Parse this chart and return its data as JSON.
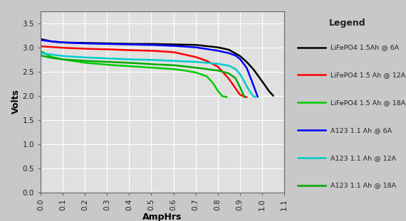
{
  "title": "",
  "xlabel": "AmpHrs",
  "ylabel": "Volts",
  "xlim": [
    0.0,
    1.1
  ],
  "ylim": [
    0.0,
    3.75
  ],
  "xticks": [
    0.0,
    0.1,
    0.2,
    0.3,
    0.4,
    0.5,
    0.6,
    0.7,
    0.8,
    0.9,
    1.0,
    1.1
  ],
  "yticks": [
    0.0,
    0.5,
    1.0,
    1.5,
    2.0,
    2.5,
    3.0,
    3.5
  ],
  "background_color": "#c8c8c8",
  "plot_bg_color": "#e0e0e0",
  "legend_bg_color": "#ffffff",
  "legend_title": "Legend",
  "series": [
    {
      "label": "LiFePO4 1.5Ah @ 6A",
      "color": "#000000",
      "linewidth": 1.8,
      "x": [
        0.0,
        0.05,
        0.1,
        0.2,
        0.3,
        0.4,
        0.5,
        0.6,
        0.7,
        0.8,
        0.85,
        0.9,
        0.93,
        0.96,
        1.0,
        1.03,
        1.05
      ],
      "y": [
        3.17,
        3.12,
        3.1,
        3.09,
        3.08,
        3.07,
        3.07,
        3.06,
        3.05,
        3.0,
        2.95,
        2.82,
        2.7,
        2.55,
        2.3,
        2.1,
        2.0
      ]
    },
    {
      "label": "LiFePO4 1.5 Ah @ 12A",
      "color": "#ff0000",
      "linewidth": 1.8,
      "x": [
        0.0,
        0.1,
        0.2,
        0.3,
        0.4,
        0.5,
        0.6,
        0.7,
        0.75,
        0.8,
        0.85,
        0.88,
        0.9,
        0.92,
        0.93
      ],
      "y": [
        3.02,
        2.99,
        2.97,
        2.96,
        2.94,
        2.93,
        2.9,
        2.8,
        2.72,
        2.6,
        2.35,
        2.15,
        2.02,
        1.98,
        1.97
      ]
    },
    {
      "label": "LiFePO4 1.5 Ah @ 18A",
      "color": "#00cc00",
      "linewidth": 1.8,
      "x": [
        0.0,
        0.05,
        0.1,
        0.2,
        0.3,
        0.4,
        0.5,
        0.6,
        0.65,
        0.7,
        0.75,
        0.78,
        0.8,
        0.82,
        0.84
      ],
      "y": [
        2.92,
        2.8,
        2.75,
        2.68,
        2.64,
        2.61,
        2.58,
        2.55,
        2.52,
        2.48,
        2.4,
        2.25,
        2.1,
        1.99,
        1.97
      ]
    },
    {
      "label": "A123 1.1 Ah @ 6A",
      "color": "#0000ff",
      "linewidth": 1.8,
      "x": [
        0.0,
        0.05,
        0.1,
        0.2,
        0.3,
        0.4,
        0.5,
        0.6,
        0.7,
        0.8,
        0.85,
        0.88,
        0.9,
        0.93,
        0.95,
        0.97,
        0.98
      ],
      "y": [
        3.15,
        3.12,
        3.1,
        3.08,
        3.07,
        3.06,
        3.05,
        3.03,
        3.0,
        2.93,
        2.88,
        2.83,
        2.76,
        2.58,
        2.35,
        2.1,
        1.98
      ]
    },
    {
      "label": "A123 1.1 Ah @ 12A",
      "color": "#00cccc",
      "linewidth": 1.8,
      "x": [
        0.0,
        0.05,
        0.1,
        0.2,
        0.3,
        0.4,
        0.5,
        0.6,
        0.7,
        0.8,
        0.85,
        0.88,
        0.9,
        0.93,
        0.95,
        0.96,
        0.97
      ],
      "y": [
        2.88,
        2.85,
        2.82,
        2.79,
        2.77,
        2.75,
        2.74,
        2.72,
        2.7,
        2.66,
        2.62,
        2.55,
        2.45,
        2.2,
        2.05,
        1.99,
        1.97
      ]
    },
    {
      "label": "A123 1.1 Ah @ 18A",
      "color": "#00aa00",
      "linewidth": 1.8,
      "x": [
        0.0,
        0.05,
        0.1,
        0.2,
        0.3,
        0.4,
        0.5,
        0.6,
        0.7,
        0.8,
        0.85,
        0.88,
        0.9,
        0.92
      ],
      "y": [
        2.83,
        2.78,
        2.75,
        2.72,
        2.7,
        2.68,
        2.65,
        2.63,
        2.58,
        2.52,
        2.46,
        2.36,
        2.18,
        1.97
      ]
    }
  ]
}
